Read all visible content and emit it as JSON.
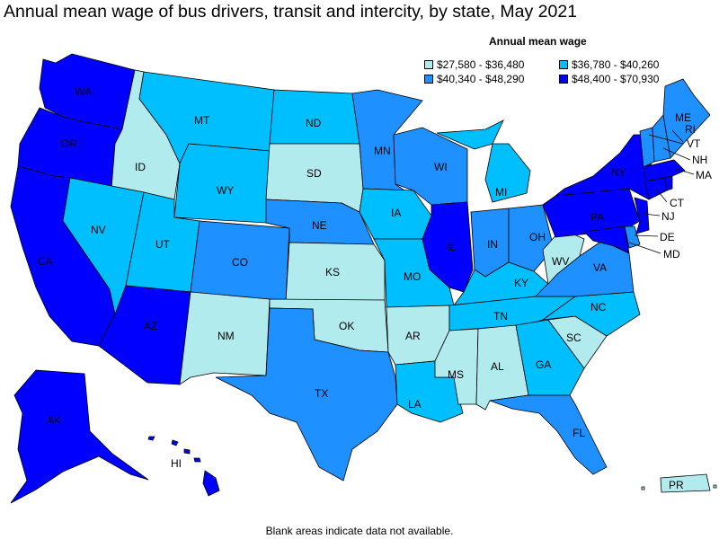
{
  "title": "Annual mean wage of bus drivers, transit and intercity, by state, May 2021",
  "legend": {
    "title": "Annual mean wage",
    "bins": [
      {
        "label": "$27,580 - $36,480",
        "color": "#b2ebee"
      },
      {
        "label": "$36,780 - $40,260",
        "color": "#00bfff"
      },
      {
        "label": "$40,340 - $48,290",
        "color": "#1e90ff"
      },
      {
        "label": "$48,400 - $70,930",
        "color": "#0000ff"
      }
    ]
  },
  "footnote": "Blank areas indicate data not available.",
  "states": {
    "WA": 3,
    "OR": 3,
    "CA": 3,
    "ID": 0,
    "NV": 1,
    "MT": 1,
    "WY": 1,
    "UT": 1,
    "AZ": 3,
    "CO": 2,
    "NM": 0,
    "ND": 1,
    "SD": 0,
    "NE": 2,
    "KS": 0,
    "OK": 0,
    "TX": 2,
    "MN": 2,
    "IA": 1,
    "MO": 1,
    "AR": 0,
    "LA": 1,
    "WI": 2,
    "IL": 3,
    "MI": 1,
    "IN": 2,
    "OH": 2,
    "KY": 1,
    "TN": 1,
    "MS": 0,
    "AL": 0,
    "GA": 1,
    "FL": 2,
    "SC": 0,
    "NC": 1,
    "VA": 2,
    "WV": 0,
    "PA": 3,
    "NY": 3,
    "ME": 2,
    "VT": 2,
    "NH": 2,
    "MA": 3,
    "CT": 3,
    "NJ": 3,
    "DE": 2,
    "MD": 3,
    "AK": 3,
    "HI": 3,
    "PR": 0,
    "RI": 3
  }
}
